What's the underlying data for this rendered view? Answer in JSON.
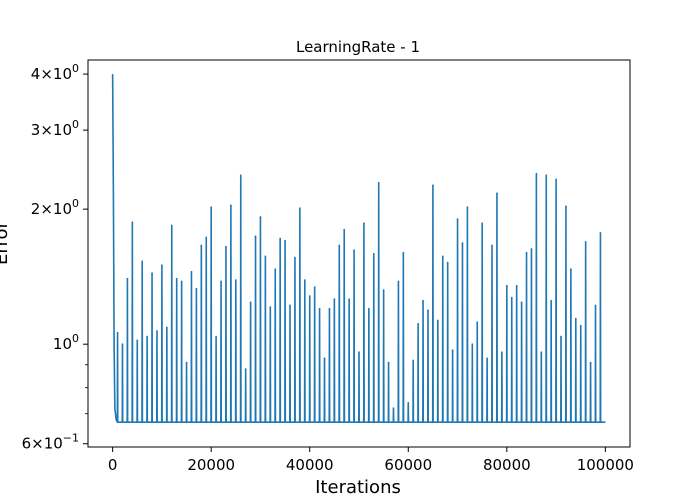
{
  "chart_data": {
    "type": "line",
    "title": "LearningRate - 1",
    "xlabel": "Iterations",
    "ylabel": "Error",
    "xlim": [
      -5000,
      105000
    ],
    "ylim": [
      0.59,
      4.3
    ],
    "yscale": "log",
    "grid": false,
    "line_color": "#1f77b4",
    "baseline": 0.67,
    "x_ticks": [
      {
        "value": 0,
        "label": "0"
      },
      {
        "value": 20000,
        "label": "20000"
      },
      {
        "value": 40000,
        "label": "40000"
      },
      {
        "value": 60000,
        "label": "60000"
      },
      {
        "value": 80000,
        "label": "80000"
      },
      {
        "value": 100000,
        "label": "100000"
      }
    ],
    "y_ticks": [
      {
        "value": 0.6,
        "mantissa": "6",
        "exp": "−1"
      },
      {
        "value": 1.0,
        "mantissa": "",
        "exp": "0"
      },
      {
        "value": 2.0,
        "mantissa": "2",
        "exp": "0"
      },
      {
        "value": 3.0,
        "mantissa": "3",
        "exp": "0"
      },
      {
        "value": 4.0,
        "mantissa": "4",
        "exp": "0"
      }
    ],
    "y_minor_ticks": [
      0.7,
      0.8,
      0.9
    ],
    "initial_drop": [
      {
        "x": 0,
        "y": 4.0
      },
      {
        "x": 150,
        "y": 2.2
      },
      {
        "x": 300,
        "y": 1.0
      },
      {
        "x": 450,
        "y": 0.72
      },
      {
        "x": 700,
        "y": 0.68
      }
    ],
    "spikes": [
      {
        "x": 1000,
        "y": 1.06
      },
      {
        "x": 2000,
        "y": 1.0
      },
      {
        "x": 3000,
        "y": 1.4
      },
      {
        "x": 4000,
        "y": 1.87
      },
      {
        "x": 5000,
        "y": 1.02
      },
      {
        "x": 6000,
        "y": 1.53
      },
      {
        "x": 7000,
        "y": 1.04
      },
      {
        "x": 8000,
        "y": 1.44
      },
      {
        "x": 9000,
        "y": 1.07
      },
      {
        "x": 10000,
        "y": 1.5
      },
      {
        "x": 11000,
        "y": 1.09
      },
      {
        "x": 12000,
        "y": 1.84
      },
      {
        "x": 13000,
        "y": 1.4
      },
      {
        "x": 14000,
        "y": 1.38
      },
      {
        "x": 15000,
        "y": 0.91
      },
      {
        "x": 16000,
        "y": 1.45
      },
      {
        "x": 17000,
        "y": 1.33
      },
      {
        "x": 18000,
        "y": 1.66
      },
      {
        "x": 19000,
        "y": 1.73
      },
      {
        "x": 20000,
        "y": 2.02
      },
      {
        "x": 21000,
        "y": 1.04
      },
      {
        "x": 22000,
        "y": 1.38
      },
      {
        "x": 23000,
        "y": 1.65
      },
      {
        "x": 24000,
        "y": 2.04
      },
      {
        "x": 25000,
        "y": 1.39
      },
      {
        "x": 26000,
        "y": 2.38
      },
      {
        "x": 27000,
        "y": 0.88
      },
      {
        "x": 28000,
        "y": 1.24
      },
      {
        "x": 29000,
        "y": 1.74
      },
      {
        "x": 30000,
        "y": 1.92
      },
      {
        "x": 31000,
        "y": 1.57
      },
      {
        "x": 32000,
        "y": 1.21
      },
      {
        "x": 33000,
        "y": 1.47
      },
      {
        "x": 34000,
        "y": 1.72
      },
      {
        "x": 35000,
        "y": 1.7
      },
      {
        "x": 36000,
        "y": 1.22
      },
      {
        "x": 37000,
        "y": 1.56
      },
      {
        "x": 38000,
        "y": 2.01
      },
      {
        "x": 39000,
        "y": 1.39
      },
      {
        "x": 40000,
        "y": 1.28
      },
      {
        "x": 41000,
        "y": 1.34
      },
      {
        "x": 42000,
        "y": 1.2
      },
      {
        "x": 43000,
        "y": 0.93
      },
      {
        "x": 44000,
        "y": 1.2
      },
      {
        "x": 45000,
        "y": 1.26
      },
      {
        "x": 46000,
        "y": 1.66
      },
      {
        "x": 47000,
        "y": 1.8
      },
      {
        "x": 48000,
        "y": 1.26
      },
      {
        "x": 49000,
        "y": 1.62
      },
      {
        "x": 50000,
        "y": 0.96
      },
      {
        "x": 51000,
        "y": 1.86
      },
      {
        "x": 52000,
        "y": 1.2
      },
      {
        "x": 53000,
        "y": 1.59
      },
      {
        "x": 54000,
        "y": 2.29
      },
      {
        "x": 55000,
        "y": 1.32
      },
      {
        "x": 56000,
        "y": 0.91
      },
      {
        "x": 57000,
        "y": 0.72
      },
      {
        "x": 58000,
        "y": 1.38
      },
      {
        "x": 59000,
        "y": 1.6
      },
      {
        "x": 60000,
        "y": 0.74
      },
      {
        "x": 61000,
        "y": 0.92
      },
      {
        "x": 62000,
        "y": 1.11
      },
      {
        "x": 63000,
        "y": 1.25
      },
      {
        "x": 64000,
        "y": 1.19
      },
      {
        "x": 65000,
        "y": 2.26
      },
      {
        "x": 66000,
        "y": 1.13
      },
      {
        "x": 67000,
        "y": 1.57
      },
      {
        "x": 68000,
        "y": 1.52
      },
      {
        "x": 69000,
        "y": 0.97
      },
      {
        "x": 70000,
        "y": 1.9
      },
      {
        "x": 71000,
        "y": 1.68
      },
      {
        "x": 72000,
        "y": 2.02
      },
      {
        "x": 73000,
        "y": 1.0
      },
      {
        "x": 74000,
        "y": 1.12
      },
      {
        "x": 75000,
        "y": 1.86
      },
      {
        "x": 76000,
        "y": 0.93
      },
      {
        "x": 77000,
        "y": 1.66
      },
      {
        "x": 78000,
        "y": 2.17
      },
      {
        "x": 79000,
        "y": 0.96
      },
      {
        "x": 80000,
        "y": 1.35
      },
      {
        "x": 81000,
        "y": 1.27
      },
      {
        "x": 82000,
        "y": 1.35
      },
      {
        "x": 83000,
        "y": 1.24
      },
      {
        "x": 84000,
        "y": 1.6
      },
      {
        "x": 85000,
        "y": 1.63
      },
      {
        "x": 86000,
        "y": 2.4
      },
      {
        "x": 87000,
        "y": 0.96
      },
      {
        "x": 88000,
        "y": 2.38
      },
      {
        "x": 89000,
        "y": 1.25
      },
      {
        "x": 90000,
        "y": 2.33
      },
      {
        "x": 91000,
        "y": 1.04
      },
      {
        "x": 92000,
        "y": 2.03
      },
      {
        "x": 93000,
        "y": 1.47
      },
      {
        "x": 94000,
        "y": 1.14
      },
      {
        "x": 95000,
        "y": 1.1
      },
      {
        "x": 96000,
        "y": 1.69
      },
      {
        "x": 97000,
        "y": 0.91
      },
      {
        "x": 98000,
        "y": 1.22
      },
      {
        "x": 99000,
        "y": 1.77
      }
    ],
    "x_end": 100000
  }
}
